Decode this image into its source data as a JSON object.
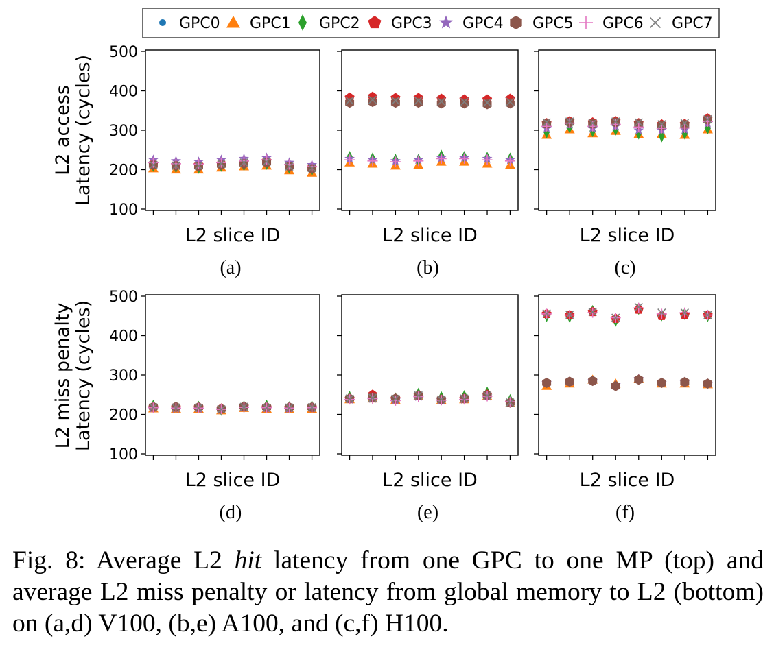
{
  "legend": [
    {
      "name": "GPC0",
      "marker": "circle",
      "color": "#1f77b4"
    },
    {
      "name": "GPC1",
      "marker": "triangle",
      "color": "#ff7f0e"
    },
    {
      "name": "GPC2",
      "marker": "diamond",
      "color": "#2ca02c"
    },
    {
      "name": "GPC3",
      "marker": "pentagon",
      "color": "#d62728"
    },
    {
      "name": "GPC4",
      "marker": "star",
      "color": "#9467bd"
    },
    {
      "name": "GPC5",
      "marker": "hexagon",
      "color": "#8c564b"
    },
    {
      "name": "GPC6",
      "marker": "plus",
      "color": "#e377c2"
    },
    {
      "name": "GPC7",
      "marker": "x",
      "color": "#7f7f7f"
    }
  ],
  "row_labels": {
    "top": [
      "L2 access",
      "Latency (cycles)"
    ],
    "bottom": [
      "L2 miss penalty",
      "Latency (cycles)"
    ]
  },
  "yticks": [
    "100",
    "200",
    "300",
    "400",
    "500"
  ],
  "caption": {
    "prefix": "Fig. 8: Average L2 ",
    "em": "hit",
    "suffix": " latency from one GPC to one MP (top) and average L2 miss penalty or latency from global memory to L2 (bottom) on (a,d) V100, (b,e) A100, and (c,f) H100."
  },
  "chart_data": [
    {
      "type": "scatter",
      "panel": "(a)",
      "xlabel": "L2 slice ID",
      "ylabel": "L2 access Latency (cycles)",
      "ylim": [
        100,
        500
      ],
      "x": [
        1,
        2,
        3,
        4,
        5,
        6,
        7,
        8
      ],
      "series": [
        {
          "name": "GPC0",
          "values": [
            205,
            203,
            202,
            206,
            208,
            212,
            200,
            195
          ]
        },
        {
          "name": "GPC1",
          "values": [
            203,
            200,
            200,
            205,
            208,
            210,
            198,
            192
          ]
        },
        {
          "name": "GPC2",
          "values": [
            210,
            207,
            205,
            210,
            212,
            215,
            205,
            200
          ]
        },
        {
          "name": "GPC3",
          "values": [
            215,
            212,
            212,
            215,
            218,
            222,
            210,
            205
          ]
        },
        {
          "name": "GPC4",
          "values": [
            225,
            222,
            220,
            225,
            228,
            230,
            218,
            212
          ]
        },
        {
          "name": "GPC5",
          "values": [
            212,
            210,
            208,
            212,
            215,
            218,
            208,
            202
          ]
        },
        {
          "name": "GPC6",
          "values": [
            218,
            215,
            214,
            218,
            222,
            225,
            213,
            208
          ]
        },
        {
          "name": "GPC7",
          "values": [
            212,
            210,
            210,
            215,
            218,
            220,
            208,
            204
          ]
        }
      ]
    },
    {
      "type": "scatter",
      "panel": "(b)",
      "xlabel": "L2 slice ID",
      "ylim": [
        100,
        500
      ],
      "x": [
        1,
        2,
        3,
        4,
        5,
        6,
        7,
        8
      ],
      "series": [
        {
          "name": "GPC0",
          "values": [
            222,
            218,
            215,
            220,
            225,
            225,
            220,
            218
          ]
        },
        {
          "name": "GPC1",
          "values": [
            218,
            215,
            210,
            212,
            220,
            220,
            215,
            212
          ]
        },
        {
          "name": "GPC2",
          "values": [
            232,
            228,
            225,
            225,
            235,
            232,
            230,
            228
          ]
        },
        {
          "name": "GPC3",
          "values": [
            383,
            385,
            382,
            382,
            380,
            378,
            378,
            380
          ]
        },
        {
          "name": "GPC4",
          "values": [
            228,
            225,
            222,
            225,
            230,
            230,
            228,
            225
          ]
        },
        {
          "name": "GPC5",
          "values": [
            370,
            372,
            370,
            370,
            368,
            368,
            366,
            368
          ]
        },
        {
          "name": "GPC6",
          "values": [
            225,
            222,
            220,
            222,
            228,
            228,
            225,
            222
          ]
        },
        {
          "name": "GPC7",
          "values": [
            375,
            377,
            375,
            375,
            373,
            372,
            370,
            372
          ]
        }
      ]
    },
    {
      "type": "scatter",
      "panel": "(c)",
      "xlabel": "L2 slice ID",
      "ylim": [
        100,
        500
      ],
      "x": [
        1,
        2,
        3,
        4,
        5,
        6,
        7,
        8
      ],
      "series": [
        {
          "name": "GPC0",
          "values": [
            300,
            310,
            300,
            305,
            300,
            295,
            298,
            310
          ]
        },
        {
          "name": "GPC1",
          "values": [
            288,
            302,
            292,
            298,
            290,
            290,
            288,
            302
          ]
        },
        {
          "name": "GPC2",
          "values": [
            295,
            308,
            298,
            302,
            292,
            285,
            292,
            305
          ]
        },
        {
          "name": "GPC3",
          "values": [
            318,
            323,
            320,
            323,
            318,
            315,
            316,
            330
          ]
        },
        {
          "name": "GPC4",
          "values": [
            305,
            315,
            305,
            310,
            300,
            300,
            302,
            318
          ]
        },
        {
          "name": "GPC5",
          "values": [
            316,
            320,
            316,
            320,
            315,
            312,
            314,
            326
          ]
        },
        {
          "name": "GPC6",
          "values": [
            310,
            318,
            310,
            315,
            308,
            305,
            306,
            322
          ]
        },
        {
          "name": "GPC7",
          "values": [
            320,
            322,
            318,
            322,
            320,
            315,
            318,
            328
          ]
        }
      ]
    },
    {
      "type": "scatter",
      "panel": "(d)",
      "xlabel": "L2 slice ID",
      "ylabel": "L2 miss penalty Latency (cycles)",
      "ylim": [
        100,
        500
      ],
      "x": [
        1,
        2,
        3,
        4,
        5,
        6,
        7,
        8
      ],
      "series": [
        {
          "name": "GPC0",
          "values": [
            218,
            216,
            216,
            212,
            218,
            216,
            215,
            216
          ]
        },
        {
          "name": "GPC1",
          "values": [
            215,
            214,
            214,
            210,
            216,
            214,
            213,
            214
          ]
        },
        {
          "name": "GPC2",
          "values": [
            222,
            218,
            219,
            212,
            220,
            222,
            218,
            220
          ]
        },
        {
          "name": "GPC3",
          "values": [
            218,
            218,
            218,
            215,
            220,
            218,
            217,
            218
          ]
        },
        {
          "name": "GPC4",
          "values": [
            216,
            215,
            215,
            212,
            218,
            216,
            215,
            216
          ]
        },
        {
          "name": "GPC5",
          "values": [
            219,
            219,
            218,
            214,
            220,
            218,
            218,
            218
          ]
        },
        {
          "name": "GPC6",
          "values": [
            217,
            216,
            216,
            213,
            218,
            217,
            216,
            217
          ]
        },
        {
          "name": "GPC7",
          "values": [
            218,
            217,
            217,
            213,
            219,
            217,
            217,
            218
          ]
        }
      ]
    },
    {
      "type": "scatter",
      "panel": "(e)",
      "xlabel": "L2 slice ID",
      "ylim": [
        100,
        500
      ],
      "x": [
        1,
        2,
        3,
        4,
        5,
        6,
        7,
        8
      ],
      "series": [
        {
          "name": "GPC0",
          "values": [
            240,
            242,
            238,
            248,
            238,
            240,
            248,
            230
          ]
        },
        {
          "name": "GPC1",
          "values": [
            238,
            240,
            236,
            246,
            236,
            238,
            246,
            228
          ]
        },
        {
          "name": "GPC2",
          "values": [
            244,
            245,
            240,
            252,
            243,
            246,
            255,
            236
          ]
        },
        {
          "name": "GPC3",
          "values": [
            240,
            250,
            240,
            248,
            238,
            240,
            250,
            230
          ]
        },
        {
          "name": "GPC4",
          "values": [
            238,
            240,
            236,
            245,
            236,
            238,
            246,
            232
          ]
        },
        {
          "name": "GPC5",
          "values": [
            240,
            243,
            240,
            248,
            238,
            240,
            248,
            230
          ]
        },
        {
          "name": "GPC6",
          "values": [
            238,
            240,
            235,
            245,
            236,
            238,
            246,
            232
          ]
        },
        {
          "name": "GPC7",
          "values": [
            240,
            242,
            240,
            248,
            238,
            240,
            248,
            230
          ]
        }
      ]
    },
    {
      "type": "scatter",
      "panel": "(f)",
      "xlabel": "L2 slice ID",
      "ylim": [
        100,
        500
      ],
      "x": [
        1,
        2,
        3,
        4,
        5,
        6,
        7,
        8
      ],
      "series": [
        {
          "name": "GPC0",
          "values": [
            278,
            282,
            284,
            275,
            288,
            278,
            280,
            276
          ]
        },
        {
          "name": "GPC1",
          "values": [
            272,
            278,
            288,
            278,
            290,
            278,
            278,
            276
          ]
        },
        {
          "name": "GPC2",
          "values": [
            450,
            448,
            462,
            438,
            468,
            452,
            455,
            450
          ]
        },
        {
          "name": "GPC3",
          "values": [
            455,
            452,
            460,
            443,
            466,
            450,
            452,
            452
          ]
        },
        {
          "name": "GPC4",
          "values": [
            280,
            283,
            285,
            274,
            290,
            280,
            282,
            278
          ]
        },
        {
          "name": "GPC5",
          "values": [
            280,
            283,
            285,
            272,
            288,
            280,
            282,
            278
          ]
        },
        {
          "name": "GPC6",
          "values": [
            455,
            452,
            458,
            445,
            470,
            455,
            458,
            452
          ]
        },
        {
          "name": "GPC7",
          "values": [
            456,
            453,
            460,
            445,
            472,
            458,
            458,
            452
          ]
        }
      ]
    }
  ]
}
